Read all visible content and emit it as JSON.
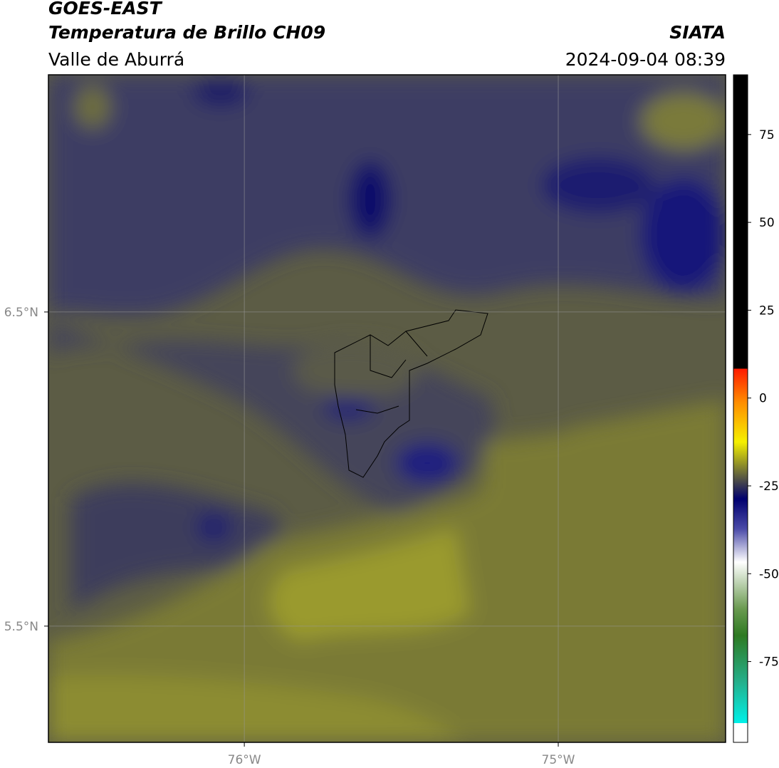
{
  "header": {
    "title": "GOES-EAST",
    "subtitle": "Temperatura de Brillo CH09",
    "region": "Valle de Aburrá",
    "source": "SIATA",
    "datetime": "2024-09-04 08:39"
  },
  "map": {
    "xlim": [
      -76.624,
      -74.467
    ],
    "ylim": [
      5.13,
      7.255
    ],
    "xticks": [
      {
        "value": -76,
        "label": "76°W"
      },
      {
        "value": -75,
        "label": "75°W"
      }
    ],
    "yticks": [
      {
        "value": 6.5,
        "label": "6.5°N"
      },
      {
        "value": 5.5,
        "label": "5.5°N"
      }
    ],
    "grid": true
  },
  "colorbar": {
    "lim": [
      -98,
      92
    ],
    "ticks": [
      75,
      50,
      25,
      0,
      -25,
      -50,
      -75
    ]
  }
}
